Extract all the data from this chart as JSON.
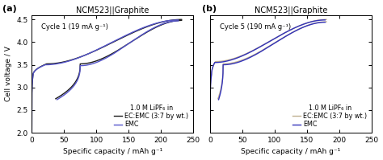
{
  "title_a": "NCM523||Graphite",
  "title_b": "NCM523||Graphite",
  "label_a": "(a)",
  "label_b": "(b)",
  "cycle_a": "Cycle 1 (19 mA g⁻¹)",
  "cycle_b": "Cycle 5 (190 mA g⁻¹)",
  "xlabel": "Specific capacity / mAh g⁻¹",
  "ylabel": "Cell voltage / V",
  "legend_header": "1.0 M LiPF₆ in",
  "legend_ec": "EC:EMC (3:7 by wt.)",
  "legend_emc": "EMC",
  "color_ec_a": "#1a1a1a",
  "color_emc_a": "#5555cc",
  "color_ec_b": "#c0b090",
  "color_emc_b": "#3333bb",
  "xlim_a": [
    0,
    250
  ],
  "xlim_b": [
    0,
    250
  ],
  "ylim": [
    2.0,
    4.6
  ],
  "yticks": [
    2.0,
    2.5,
    3.0,
    3.5,
    4.0,
    4.5
  ],
  "xticks": [
    0,
    50,
    100,
    150,
    200,
    250
  ],
  "figsize": [
    4.74,
    1.99
  ],
  "dpi": 100
}
